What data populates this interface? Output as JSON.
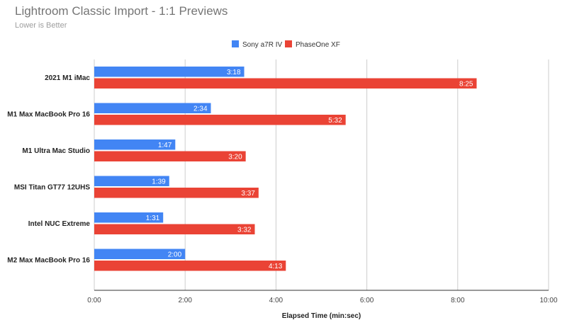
{
  "chart_data": {
    "type": "bar",
    "orientation": "horizontal",
    "title": "Lightroom Classic Import - 1:1 Previews",
    "subtitle": "Lower is Better",
    "xlabel": "Elapsed Time (min:sec)",
    "ylabel": "",
    "x_unit": "seconds",
    "xlim": [
      0,
      600
    ],
    "x_ticks": [
      0,
      120,
      240,
      360,
      480,
      600
    ],
    "x_tick_labels": [
      "0:00",
      "2:00",
      "4:00",
      "6:00",
      "8:00",
      "10:00"
    ],
    "grid": true,
    "legend_position": "top-center",
    "categories": [
      "2021 M1 iMac",
      "M1 Max MacBook Pro 16",
      "M1 Ultra Mac Studio",
      "MSI Titan GT77 12UHS",
      "Intel NUC Extreme",
      "M2 Max MacBook Pro 16"
    ],
    "series": [
      {
        "name": "Sony a7R IV",
        "color": "#4285f4",
        "values": [
          198,
          154,
          107,
          99,
          91,
          120
        ],
        "labels": [
          "3:18",
          "2:34",
          "1:47",
          "1:39",
          "1:31",
          "2:00"
        ]
      },
      {
        "name": "PhaseOne XF",
        "color": "#ea4335",
        "values": [
          505,
          332,
          200,
          217,
          212,
          253
        ],
        "labels": [
          "8:25",
          "5:32",
          "3:20",
          "3:37",
          "3:32",
          "4:13"
        ]
      }
    ]
  }
}
